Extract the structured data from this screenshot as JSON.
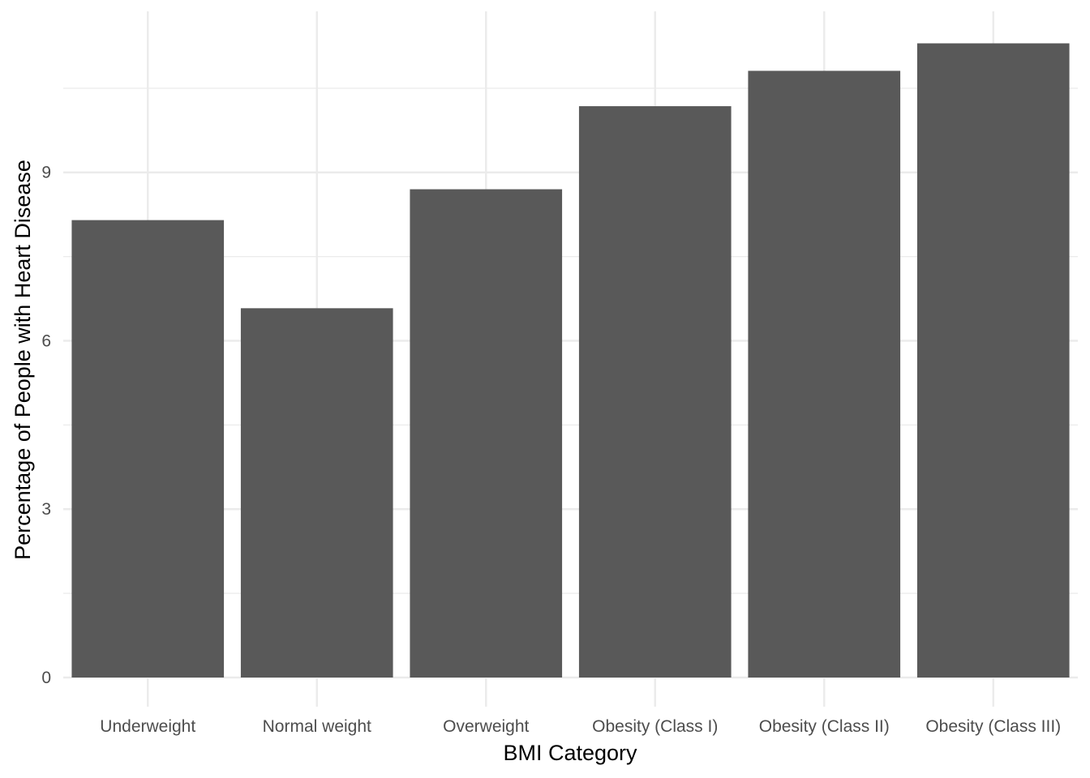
{
  "chart_data": {
    "type": "bar",
    "title": "",
    "xlabel": "BMI Category",
    "ylabel": "Percentage of People with Heart Disease",
    "categories": [
      "Underweight",
      "Normal weight",
      "Overweight",
      "Obesity (Class I)",
      "Obesity (Class II)",
      "Obesity (Class III)"
    ],
    "values": [
      8.15,
      6.58,
      8.7,
      10.18,
      10.81,
      11.3
    ],
    "ylim": [
      0,
      11.87
    ],
    "yticks": [
      0,
      3,
      6,
      9
    ],
    "grid": true,
    "legend": "none",
    "colors": {
      "bar": "#595959",
      "grid": "#ebebeb",
      "background": "#ffffff"
    }
  }
}
